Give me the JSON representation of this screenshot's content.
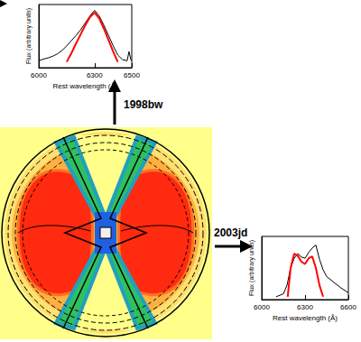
{
  "chart_data": [
    {
      "type": "line",
      "annotations": [
        "1998bw"
      ],
      "xlabel": "Rest wavelength (Å)",
      "ylabel": "Flux (arbitrary units)",
      "xlim": [
        6000,
        6500
      ],
      "xticks": [
        6000,
        6300,
        6500
      ],
      "ylim": [
        0,
        1.1
      ],
      "tick_labels": "x",
      "grid": false,
      "series": [
        {
          "color": "#000000",
          "x": [
            6000,
            6025,
            6050,
            6075,
            6100,
            6125,
            6150,
            6175,
            6200,
            6225,
            6250,
            6275,
            6300,
            6325,
            6350,
            6375,
            6400,
            6425,
            6450,
            6475,
            6485,
            6495,
            6500
          ],
          "values": [
            0.12,
            0.15,
            0.17,
            0.2,
            0.24,
            0.3,
            0.38,
            0.47,
            0.56,
            0.66,
            0.78,
            0.9,
            1.0,
            0.9,
            0.74,
            0.56,
            0.38,
            0.22,
            0.14,
            0.12,
            0.28,
            0.14,
            0.12
          ]
        },
        {
          "color": "#ff0000",
          "x": [
            6150,
            6175,
            6200,
            6225,
            6250,
            6275,
            6300,
            6325,
            6350,
            6375,
            6400,
            6425
          ],
          "values": [
            0.1,
            0.25,
            0.42,
            0.58,
            0.74,
            0.88,
            0.96,
            0.86,
            0.68,
            0.48,
            0.28,
            0.1
          ]
        }
      ]
    },
    {
      "type": "line",
      "annotations": [
        "2003jd"
      ],
      "xlabel": "Rest wavelength (Å)",
      "ylabel": "Flux (arbitrary units)",
      "xlim": [
        6000,
        6600
      ],
      "xticks": [
        6000,
        6300,
        6600
      ],
      "ylim": [
        0,
        1.1
      ],
      "tick_labels": "x",
      "grid": false,
      "series": [
        {
          "color": "#000000",
          "x": [
            6100,
            6150,
            6175,
            6200,
            6225,
            6250,
            6275,
            6300,
            6325,
            6350,
            6375,
            6400,
            6425,
            6450,
            6500,
            6550,
            6600
          ],
          "values": [
            0.05,
            0.1,
            0.25,
            0.55,
            0.72,
            0.8,
            0.74,
            0.72,
            0.82,
            0.9,
            0.95,
            0.7,
            0.52,
            0.4,
            0.3,
            0.2,
            0.12
          ]
        },
        {
          "color": "#ff0000",
          "x": [
            6180,
            6200,
            6225,
            6250,
            6275,
            6300,
            6325,
            6350,
            6375,
            6400,
            6425
          ],
          "values": [
            0.05,
            0.55,
            0.8,
            0.76,
            0.66,
            0.62,
            0.72,
            0.75,
            0.55,
            0.25,
            0.05
          ]
        }
      ]
    }
  ]
}
